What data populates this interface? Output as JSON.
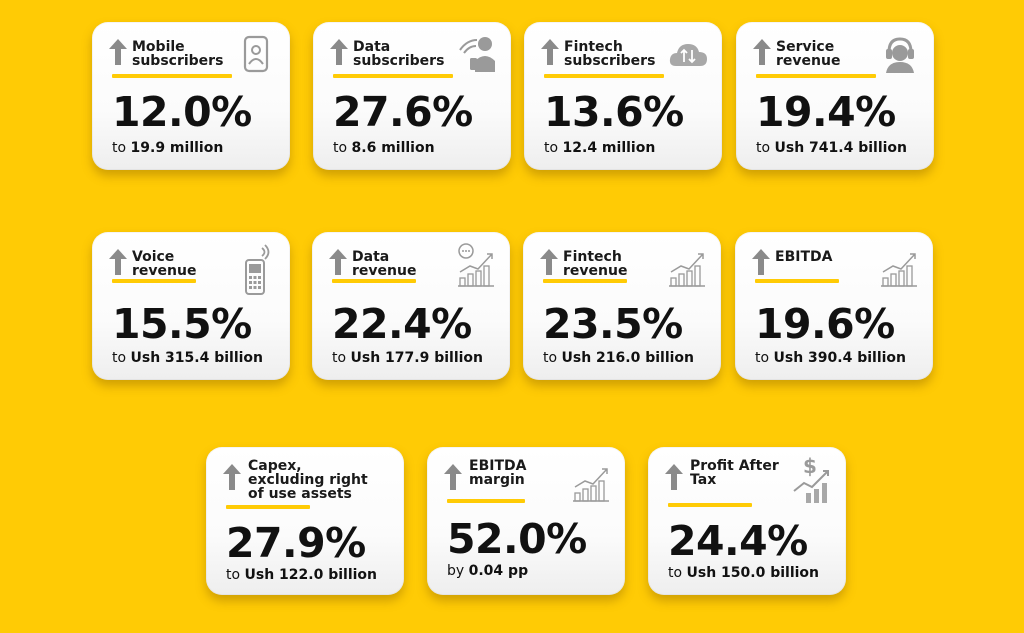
{
  "theme": {
    "background": "#FFCB05",
    "accent": "#FFCB05",
    "arrow": "#8a8a8a",
    "icon": "#9a9a9a"
  },
  "cards": [
    {
      "label_l1": "Mobile",
      "label_l2": "subscribers",
      "value": "12.0%",
      "prefix": "to",
      "amount": "19.9 million",
      "icon": "phone-user-icon"
    },
    {
      "label_l1": "Data",
      "label_l2": "subscribers",
      "value": "27.6%",
      "prefix": "to",
      "amount": "8.6 million",
      "icon": "wifi-user-icon"
    },
    {
      "label_l1": "Fintech",
      "label_l2": "subscribers",
      "value": "13.6%",
      "prefix": "to",
      "amount": "12.4 million",
      "icon": "cloud-transfer-icon"
    },
    {
      "label_l1": "Service",
      "label_l2": "revenue",
      "value": "19.4%",
      "prefix": "to",
      "amount": "Ush 741.4 billion",
      "icon": "headset-agent-icon"
    },
    {
      "label_l1": "Voice",
      "label_l2": "revenue",
      "value": "15.5%",
      "prefix": "to",
      "amount": "Ush 315.4 billion",
      "icon": "feature-phone-icon"
    },
    {
      "label_l1": "Data",
      "label_l2": "revenue",
      "value": "22.4%",
      "prefix": "to",
      "amount": "Ush 177.9 billion",
      "icon": "chat-growth-chart-icon"
    },
    {
      "label_l1": "Fintech",
      "label_l2": "revenue",
      "value": "23.5%",
      "prefix": "to",
      "amount": "Ush 216.0 billion",
      "icon": "growth-chart-icon"
    },
    {
      "label_l1": "EBITDA",
      "label_l2": "",
      "value": "19.6%",
      "prefix": "to",
      "amount": "Ush 390.4 billion",
      "icon": "growth-chart-icon"
    },
    {
      "label_l1": "Capex,",
      "label_l2": "excluding right",
      "label_l3": "of use assets",
      "value": "27.9%",
      "prefix": "to",
      "amount": "Ush 122.0 billion",
      "icon": "none"
    },
    {
      "label_l1": "EBITDA",
      "label_l2": "margin",
      "value": "52.0%",
      "prefix": "by",
      "amount": "0.04 pp",
      "icon": "growth-chart-icon"
    },
    {
      "label_l1": "Profit After",
      "label_l2": "Tax",
      "value": "24.4%",
      "prefix": "to",
      "amount": "Ush 150.0 billion",
      "icon": "dollar-growth-chart-icon"
    }
  ]
}
